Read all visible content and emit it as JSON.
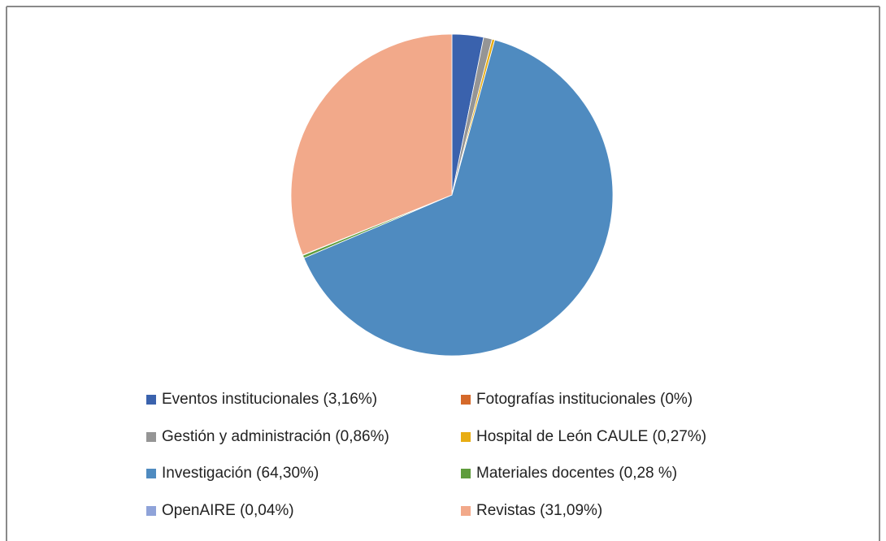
{
  "chart_data": {
    "type": "pie",
    "categories": [
      "Eventos institucionales (3,16%)",
      "Fotografías institucionales (0%)",
      "Gestión y administración (0,86%)",
      "Hospital de León CAULE (0,27%)",
      "Investigación (64,30%)",
      "Materiales docentes (0,28 %)",
      "OpenAIRE  (0,04%)",
      "Revistas (31,09%)"
    ],
    "values": [
      3.16,
      0,
      0.86,
      0.27,
      64.3,
      0.28,
      0.04,
      31.09
    ],
    "colors": [
      "#3a62ad",
      "#d5692a",
      "#959595",
      "#e8ad13",
      "#4f8bc0",
      "#5e9c3c",
      "#8fa3d9",
      "#f2a98a"
    ],
    "legend": "bottom"
  }
}
